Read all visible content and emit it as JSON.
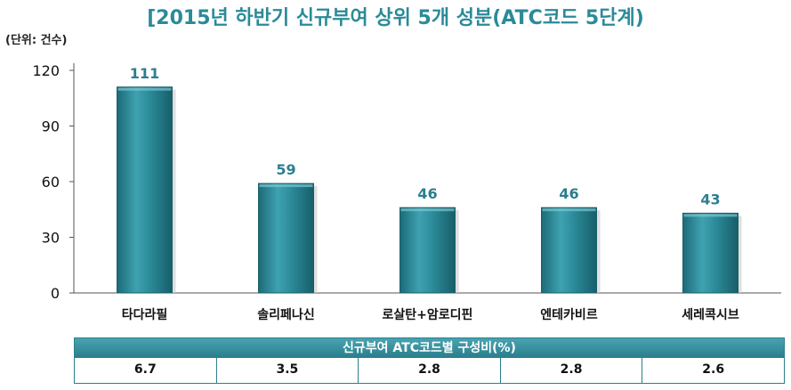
{
  "chart_data": {
    "type": "bar",
    "title": "[2015년 하반기 신규부여 상위 5개 성분(ATC코드 5단계)",
    "unit_label": "(단위: 건수)",
    "categories": [
      "타다라필",
      "솔리페나신",
      "로살탄+암로디핀",
      "엔테카비르",
      "세레콕시브"
    ],
    "values": [
      111,
      59,
      46,
      46,
      43
    ],
    "ylim": [
      0,
      120
    ],
    "yticks": [
      0,
      30,
      60,
      90,
      120
    ],
    "bar_color": "#2b8a98",
    "label_color": "#2b7f8f"
  },
  "table": {
    "header": "신규부여 ATC코드별 구성비(%)",
    "values": [
      "6.7",
      "3.5",
      "2.8",
      "2.8",
      "2.6"
    ]
  }
}
